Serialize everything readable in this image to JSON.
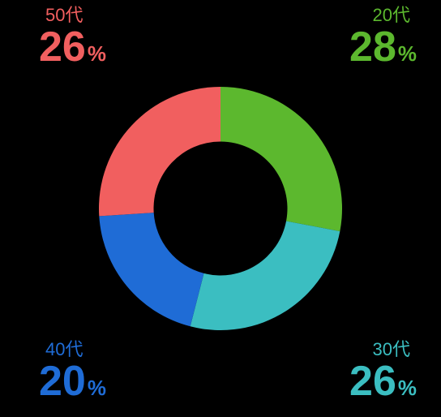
{
  "chart": {
    "type": "donut",
    "background_color": "#000000",
    "inner_radius_ratio": 0.55,
    "outer_radius": 150,
    "start_angle": 0,
    "segments": [
      {
        "id": "s20",
        "category": "20代",
        "value": 28,
        "color": "#5cb82e",
        "label_pos": "tr"
      },
      {
        "id": "s30",
        "category": "30代",
        "value": 26,
        "color": "#3bbec1",
        "label_pos": "br"
      },
      {
        "id": "s40",
        "category": "40代",
        "value": 20,
        "color": "#1f6cd6",
        "label_pos": "bl"
      },
      {
        "id": "s50",
        "category": "50代",
        "value": 26,
        "color": "#f15f5f",
        "label_pos": "tl"
      }
    ],
    "percent_symbol": "%",
    "label_category_fontsize": 22,
    "label_value_fontsize": 52,
    "label_percent_fontsize": 26
  }
}
